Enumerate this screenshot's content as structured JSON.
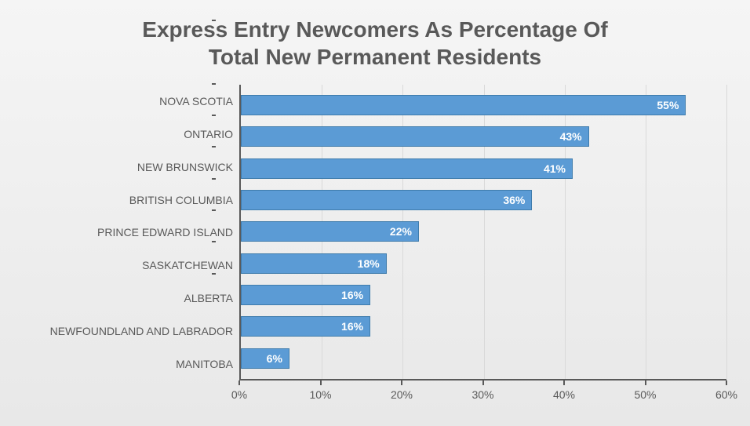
{
  "chart": {
    "type": "bar-horizontal",
    "title_line1": "Express Entry Newcomers As Percentage Of",
    "title_line2": "Total New Permanent Residents",
    "title_fontsize": 28,
    "title_color": "#595959",
    "background_gradient": [
      "#f5f5f5",
      "#e8e8e8"
    ],
    "bar_color": "#5b9bd5",
    "bar_border_color": "#3f7cac",
    "axis_color": "#595959",
    "grid_color": "#d9d9d9",
    "label_fontsize": 14,
    "label_color": "#595959",
    "value_label_color": "#ffffff",
    "value_label_fontsize": 14,
    "value_label_weight": "bold",
    "xlim": [
      0,
      60
    ],
    "xtick_step": 10,
    "xticks": [
      {
        "value": 0,
        "label": "0%"
      },
      {
        "value": 10,
        "label": "10%"
      },
      {
        "value": 20,
        "label": "20%"
      },
      {
        "value": 30,
        "label": "30%"
      },
      {
        "value": 40,
        "label": "40%"
      },
      {
        "value": 50,
        "label": "50%"
      },
      {
        "value": 60,
        "label": "60%"
      }
    ],
    "data": [
      {
        "category": "NOVA SCOTIA",
        "value": 55,
        "label": "55%"
      },
      {
        "category": "ONTARIO",
        "value": 43,
        "label": "43%"
      },
      {
        "category": "NEW BRUNSWICK",
        "value": 41,
        "label": "41%"
      },
      {
        "category": "BRITISH COLUMBIA",
        "value": 36,
        "label": "36%"
      },
      {
        "category": "PRINCE EDWARD ISLAND",
        "value": 22,
        "label": "22%"
      },
      {
        "category": "SASKATCHEWAN",
        "value": 18,
        "label": "18%"
      },
      {
        "category": "ALBERTA",
        "value": 16,
        "label": "16%"
      },
      {
        "category": "NEWFOUNDLAND AND LABRADOR",
        "value": 16,
        "label": "16%"
      },
      {
        "category": "MANITOBA",
        "value": 6,
        "label": "6%"
      }
    ]
  }
}
